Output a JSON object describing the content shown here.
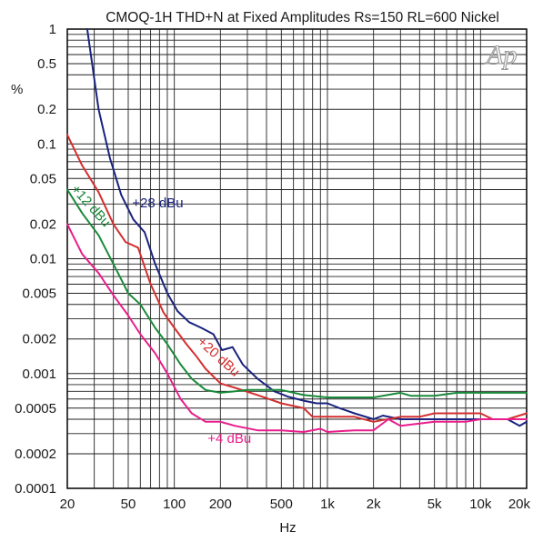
{
  "chart_data": {
    "type": "line",
    "title": "CMOQ-1H THD+N at Fixed Amplitudes Rs=150 RL=600 Nickel",
    "xlabel": "Hz",
    "ylabel": "%",
    "x_scale": "log",
    "y_scale": "log",
    "xlim": [
      20,
      20000
    ],
    "ylim": [
      0.0001,
      1
    ],
    "grid": true,
    "x_ticks": [
      {
        "value": 20,
        "label": "20"
      },
      {
        "value": 50,
        "label": "50"
      },
      {
        "value": 100,
        "label": "100"
      },
      {
        "value": 200,
        "label": "200"
      },
      {
        "value": 500,
        "label": "500"
      },
      {
        "value": 1000,
        "label": "1k"
      },
      {
        "value": 2000,
        "label": "2k"
      },
      {
        "value": 5000,
        "label": "5k"
      },
      {
        "value": 10000,
        "label": "10k"
      },
      {
        "value": 20000,
        "label": "20k"
      }
    ],
    "y_ticks": [
      {
        "value": 1,
        "label": "1"
      },
      {
        "value": 0.5,
        "label": "0.5"
      },
      {
        "value": 0.2,
        "label": "0.2"
      },
      {
        "value": 0.1,
        "label": "0.1"
      },
      {
        "value": 0.05,
        "label": "0.05"
      },
      {
        "value": 0.02,
        "label": "0.02"
      },
      {
        "value": 0.01,
        "label": "0.01"
      },
      {
        "value": 0.005,
        "label": "0.005"
      },
      {
        "value": 0.002,
        "label": "0.002"
      },
      {
        "value": 0.001,
        "label": "0.001"
      },
      {
        "value": 0.0005,
        "label": "0.0005"
      },
      {
        "value": 0.0002,
        "label": "0.0002"
      },
      {
        "value": 0.0001,
        "label": "0.0001"
      }
    ],
    "series": [
      {
        "name": "+28 dBu",
        "color": "#1a237e",
        "label_at": [
          53,
          0.028
        ],
        "label_rotate": 0,
        "points": [
          [
            27,
            1
          ],
          [
            32,
            0.2
          ],
          [
            38,
            0.075
          ],
          [
            45,
            0.036
          ],
          [
            54,
            0.022
          ],
          [
            64,
            0.017
          ],
          [
            75,
            0.009
          ],
          [
            90,
            0.005
          ],
          [
            105,
            0.0035
          ],
          [
            125,
            0.0028
          ],
          [
            150,
            0.0025
          ],
          [
            180,
            0.0022
          ],
          [
            205,
            0.0016
          ],
          [
            240,
            0.0017
          ],
          [
            280,
            0.0012
          ],
          [
            350,
            0.0009
          ],
          [
            450,
            0.0007
          ],
          [
            550,
            0.00063
          ],
          [
            700,
            0.00058
          ],
          [
            850,
            0.00055
          ],
          [
            1000,
            0.00055
          ],
          [
            1200,
            0.0005
          ],
          [
            1500,
            0.00045
          ],
          [
            2000,
            0.0004
          ],
          [
            2300,
            0.00043
          ],
          [
            3000,
            0.0004
          ],
          [
            5000,
            0.0004
          ],
          [
            6000,
            0.0004
          ],
          [
            10000,
            0.0004
          ],
          [
            15000,
            0.0004
          ],
          [
            18000,
            0.00035
          ],
          [
            20000,
            0.00038
          ]
        ]
      },
      {
        "name": "+20 dBu",
        "color": "#d32f2f",
        "label_at": [
          140,
          0.00185
        ],
        "label_rotate": 42,
        "points": [
          [
            20,
            0.12
          ],
          [
            25,
            0.065
          ],
          [
            32,
            0.038
          ],
          [
            40,
            0.02
          ],
          [
            48,
            0.014
          ],
          [
            58,
            0.0125
          ],
          [
            70,
            0.006
          ],
          [
            85,
            0.0034
          ],
          [
            100,
            0.0025
          ],
          [
            120,
            0.0018
          ],
          [
            140,
            0.0014
          ],
          [
            160,
            0.0011
          ],
          [
            200,
            0.00082
          ],
          [
            250,
            0.00075
          ],
          [
            350,
            0.00065
          ],
          [
            500,
            0.00055
          ],
          [
            700,
            0.0005
          ],
          [
            800,
            0.00042
          ],
          [
            1000,
            0.00042
          ],
          [
            1500,
            0.00042
          ],
          [
            2000,
            0.00038
          ],
          [
            3000,
            0.00042
          ],
          [
            4000,
            0.00042
          ],
          [
            5000,
            0.00045
          ],
          [
            10000,
            0.00045
          ],
          [
            12000,
            0.0004
          ],
          [
            15000,
            0.0004
          ],
          [
            20000,
            0.00045
          ]
        ]
      },
      {
        "name": "+12 dBu",
        "color": "#1a8a3a",
        "label_at": [
          21,
          0.04
        ],
        "label_rotate": 48,
        "points": [
          [
            20,
            0.04
          ],
          [
            25,
            0.025
          ],
          [
            32,
            0.016
          ],
          [
            40,
            0.009
          ],
          [
            50,
            0.005
          ],
          [
            60,
            0.004
          ],
          [
            75,
            0.0025
          ],
          [
            90,
            0.0018
          ],
          [
            110,
            0.0012
          ],
          [
            130,
            0.0009
          ],
          [
            160,
            0.00072
          ],
          [
            200,
            0.00068
          ],
          [
            250,
            0.0007
          ],
          [
            300,
            0.00072
          ],
          [
            500,
            0.00072
          ],
          [
            700,
            0.00065
          ],
          [
            1000,
            0.00062
          ],
          [
            2000,
            0.00062
          ],
          [
            3000,
            0.00068
          ],
          [
            3500,
            0.00064
          ],
          [
            5000,
            0.00064
          ],
          [
            7000,
            0.00068
          ],
          [
            10000,
            0.00068
          ],
          [
            20000,
            0.00068
          ]
        ]
      },
      {
        "name": "+4 dBu",
        "color": "#e91e8c",
        "label_at": [
          165,
          0.00025
        ],
        "label_rotate": 0,
        "points": [
          [
            20,
            0.02
          ],
          [
            25,
            0.011
          ],
          [
            32,
            0.0075
          ],
          [
            40,
            0.0048
          ],
          [
            50,
            0.0032
          ],
          [
            60,
            0.0022
          ],
          [
            75,
            0.0015
          ],
          [
            90,
            0.001
          ],
          [
            110,
            0.0006
          ],
          [
            130,
            0.00045
          ],
          [
            160,
            0.00038
          ],
          [
            200,
            0.00038
          ],
          [
            250,
            0.00035
          ],
          [
            350,
            0.00032
          ],
          [
            500,
            0.00032
          ],
          [
            700,
            0.00031
          ],
          [
            900,
            0.00033
          ],
          [
            1000,
            0.00031
          ],
          [
            1500,
            0.00032
          ],
          [
            2000,
            0.00032
          ],
          [
            2500,
            0.0004
          ],
          [
            3000,
            0.00035
          ],
          [
            5000,
            0.00038
          ],
          [
            8000,
            0.00038
          ],
          [
            10000,
            0.0004
          ],
          [
            20000,
            0.0004
          ]
        ]
      }
    ]
  },
  "logo": {
    "text": "Ap"
  }
}
